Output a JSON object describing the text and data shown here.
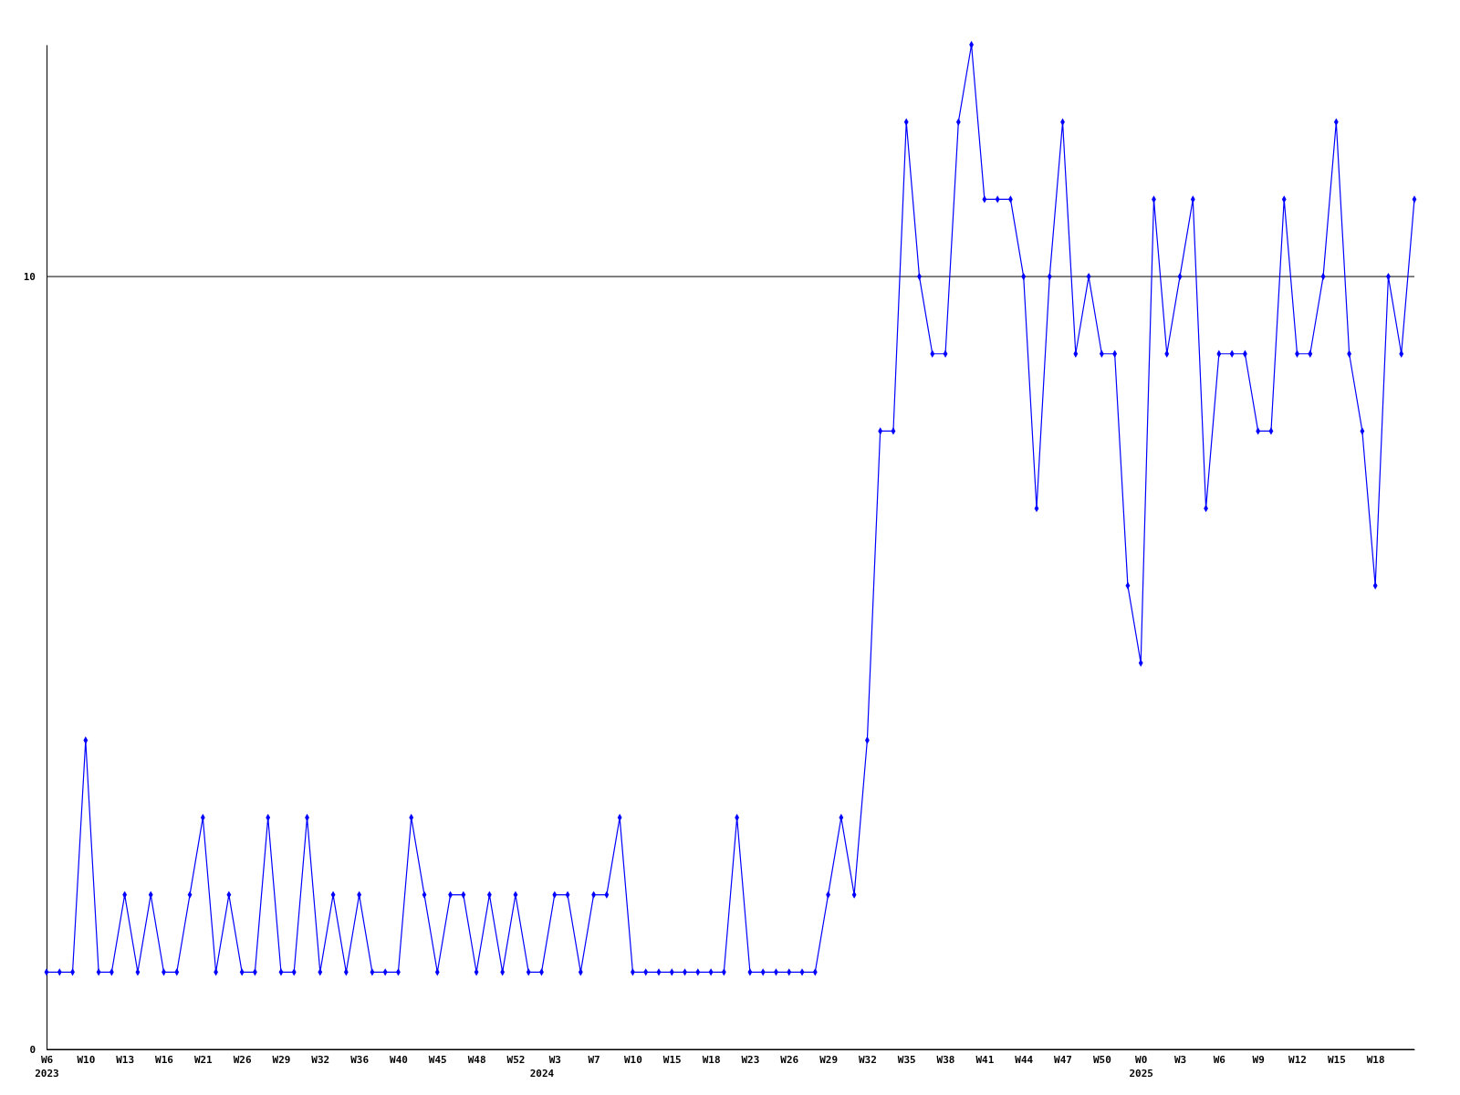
{
  "chart_data": {
    "type": "line",
    "categories": [
      "W6\n2023",
      null,
      null,
      "W10",
      null,
      null,
      "W13",
      null,
      null,
      "W16",
      null,
      null,
      "W21",
      null,
      null,
      "W26",
      null,
      null,
      "W29",
      null,
      null,
      "W32",
      null,
      null,
      "W36",
      null,
      null,
      "W40",
      null,
      null,
      "W45",
      null,
      null,
      "W48",
      null,
      null,
      "W52",
      null,
      "\n2024",
      "W3",
      null,
      null,
      "W7",
      null,
      null,
      "W10",
      null,
      null,
      "W15",
      null,
      null,
      "W18",
      null,
      null,
      "W23",
      null,
      null,
      "W26",
      null,
      null,
      "W29",
      null,
      null,
      "W32",
      null,
      null,
      "W35",
      null,
      null,
      "W38",
      null,
      null,
      "W41",
      null,
      null,
      "W44",
      null,
      null,
      "W47",
      null,
      null,
      "W50",
      null,
      null,
      "W0\n2025",
      null,
      null,
      "W3",
      null,
      null,
      "W6",
      null,
      null,
      "W9",
      null,
      null,
      "W12",
      null,
      null,
      "W15",
      null,
      null,
      "W18",
      null,
      null,
      null
    ],
    "series": [
      {
        "color": "#0000ff",
        "values": [
          1,
          1,
          1,
          4,
          1,
          1,
          2,
          1,
          2,
          1,
          1,
          2,
          3,
          1,
          2,
          1,
          1,
          3,
          1,
          1,
          3,
          1,
          2,
          1,
          2,
          1,
          1,
          1,
          3,
          2,
          1,
          2,
          2,
          1,
          2,
          1,
          2,
          1,
          1,
          2,
          2,
          1,
          2,
          2,
          3,
          1,
          1,
          1,
          1,
          1,
          1,
          1,
          1,
          3,
          1,
          1,
          1,
          1,
          1,
          1,
          2,
          3,
          2,
          4,
          8,
          8,
          12,
          10,
          9,
          9,
          12,
          13,
          11,
          11,
          11,
          10,
          7,
          10,
          12,
          9,
          10,
          9,
          9,
          6,
          5,
          11,
          9,
          10,
          11,
          7,
          9,
          9,
          9,
          8,
          8,
          11,
          9,
          9,
          10,
          12,
          9,
          8,
          6,
          10,
          9,
          11
        ]
      }
    ],
    "ylim": [
      0,
      13
    ],
    "yticks": [
      0,
      10
    ],
    "grid": "y",
    "marker": "diamond",
    "line_style": "solid"
  }
}
